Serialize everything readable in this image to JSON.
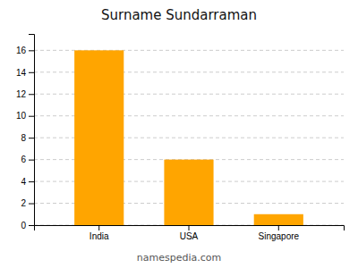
{
  "chart_data": {
    "type": "bar",
    "title": "Surname Sundarraman",
    "categories": [
      "India",
      "USA",
      "Singapore"
    ],
    "values": [
      16,
      6,
      1
    ],
    "color": "#FFA500",
    "ylim": [
      0,
      17.5
    ],
    "yticks": [
      0,
      2,
      4,
      6,
      8,
      10,
      12,
      14,
      16
    ],
    "grid": true,
    "annotations": [
      "namespedia.com"
    ]
  }
}
